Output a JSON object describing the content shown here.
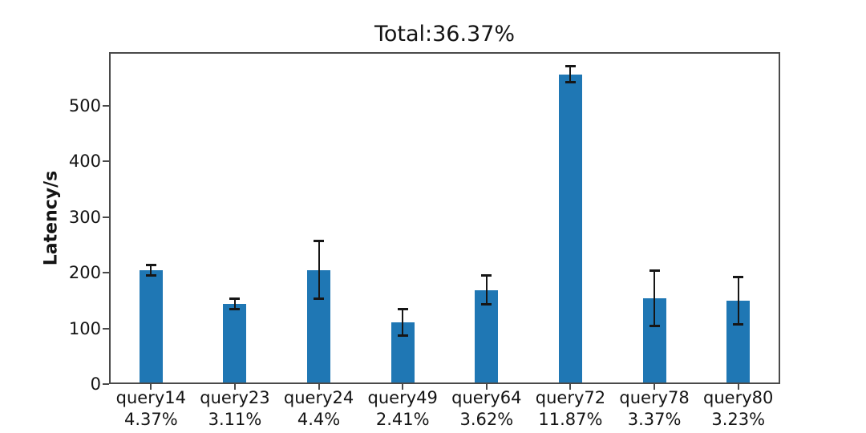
{
  "chart_data": {
    "type": "bar",
    "title": "Total:36.37%",
    "xlabel": "",
    "ylabel": "Latency/s",
    "categories": [
      "query14",
      "query23",
      "query24",
      "query49",
      "query64",
      "query72",
      "query78",
      "query80"
    ],
    "percent_labels": [
      "4.37%",
      "3.11%",
      "4.4%",
      "2.41%",
      "3.62%",
      "11.87%",
      "3.37%",
      "3.23%"
    ],
    "series": [
      {
        "name": "Latency",
        "values": [
          204,
          144,
          205,
          111,
          169,
          556,
          154,
          150
        ],
        "errors": [
          10,
          10,
          53,
          24,
          27,
          15,
          50,
          43
        ]
      }
    ],
    "yticks": [
      0,
      100,
      200,
      300,
      400,
      500
    ],
    "ylim": [
      0,
      596
    ],
    "grid": false,
    "legend_position": "none",
    "bar_color": "#1f77b4",
    "error_bar_color": "#161616",
    "axis_color": "#4a4a4a",
    "background_color": "#ffffff"
  }
}
